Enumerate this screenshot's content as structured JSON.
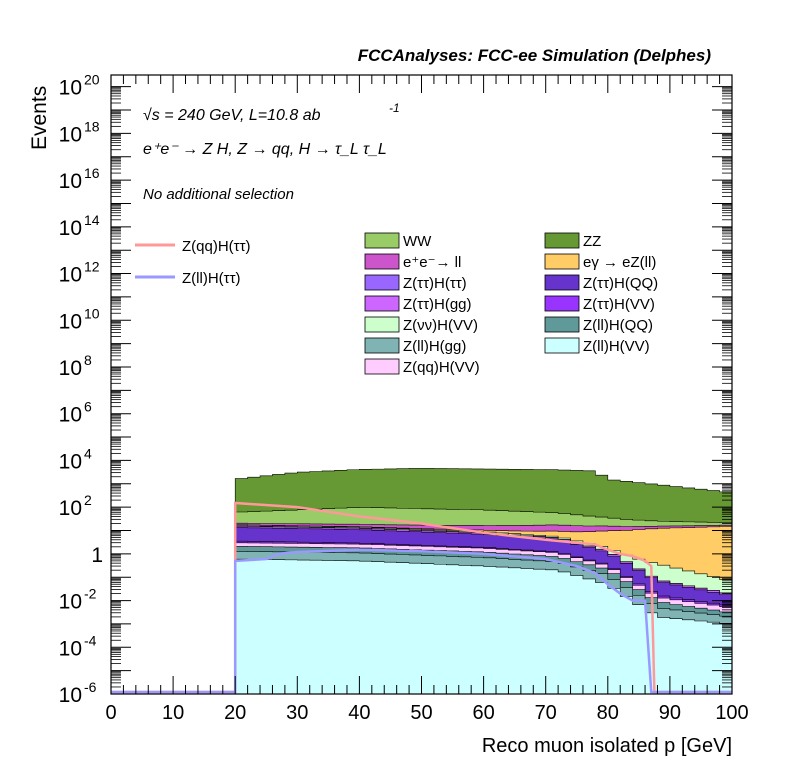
{
  "chart_data": {
    "type": "area",
    "title": "FCCAnalyses: FCC-ee Simulation (Delphes)",
    "xlabel": "Reco muon isolated p [GeV]",
    "ylabel": "Events",
    "xlim": [
      0,
      100
    ],
    "ylim_exponent": [
      -6,
      20.5
    ],
    "log_y": true,
    "x_ticks": [
      "0",
      "10",
      "20",
      "30",
      "40",
      "50",
      "60",
      "70",
      "80",
      "90",
      "100"
    ],
    "y_ticks": [
      {
        "exp": -6,
        "label": "10",
        "sup": "-6"
      },
      {
        "exp": -4,
        "label": "10",
        "sup": "-4"
      },
      {
        "exp": -2,
        "label": "10",
        "sup": "-2"
      },
      {
        "exp": 0,
        "label": "1",
        "sup": ""
      },
      {
        "exp": 2,
        "label": "10",
        "sup": "2"
      },
      {
        "exp": 4,
        "label": "10",
        "sup": "4"
      },
      {
        "exp": 6,
        "label": "10",
        "sup": "6"
      },
      {
        "exp": 8,
        "label": "10",
        "sup": "8"
      },
      {
        "exp": 10,
        "label": "10",
        "sup": "10"
      },
      {
        "exp": 12,
        "label": "10",
        "sup": "12"
      },
      {
        "exp": 14,
        "label": "10",
        "sup": "14"
      },
      {
        "exp": 16,
        "label": "10",
        "sup": "16"
      },
      {
        "exp": 18,
        "label": "10",
        "sup": "18"
      },
      {
        "exp": 20,
        "label": "10",
        "sup": "20"
      }
    ],
    "annotations": {
      "energy": "√s = 240 GeV, L=10.8 ab",
      "energy_sup": "-1",
      "process": "e⁺e⁻ → Z H, Z → qq, H → τ_L τ_L",
      "selection": "No additional selection"
    },
    "stack_layers": [
      {
        "name": "Z(ll)H(VV)",
        "color": "#ccffff",
        "points": [
          [
            20,
            0.6
          ],
          [
            40,
            0.5
          ],
          [
            60,
            0.3
          ],
          [
            72,
            0.2
          ],
          [
            80,
            0.05
          ],
          [
            88,
            0.002
          ],
          [
            100,
            0.001
          ]
        ]
      },
      {
        "name": "Z(ll)H(gg)",
        "color": "#80b3b3",
        "points": [
          [
            20,
            0.7
          ],
          [
            40,
            0.6
          ],
          [
            60,
            0.4
          ],
          [
            72,
            0.25
          ],
          [
            80,
            0.07
          ],
          [
            88,
            0.003
          ],
          [
            100,
            0.001
          ]
        ]
      },
      {
        "name": "Z(ll)H(QQ)",
        "color": "#5f9999",
        "points": [
          [
            20,
            0.8
          ],
          [
            40,
            0.7
          ],
          [
            60,
            0.5
          ],
          [
            72,
            0.3
          ],
          [
            80,
            0.09
          ],
          [
            88,
            0.004
          ],
          [
            100,
            0.001
          ]
        ]
      },
      {
        "name": "Z(qq)H(VV)",
        "color": "#ffccff",
        "points": [
          [
            20,
            0.9
          ],
          [
            40,
            0.8
          ],
          [
            60,
            0.55
          ],
          [
            72,
            0.35
          ],
          [
            80,
            0.1
          ],
          [
            88,
            0.005
          ],
          [
            100,
            0.002
          ]
        ]
      },
      {
        "name": "Z(ττ)H(VV)",
        "color": "#9933ff",
        "points": [
          [
            20,
            0.5
          ],
          [
            30,
            0.4
          ],
          [
            40,
            0.3
          ],
          [
            50,
            0.2
          ],
          [
            60,
            0.15
          ],
          [
            70,
            0.1
          ],
          [
            72,
            0.08
          ],
          [
            80,
            0.03
          ],
          [
            88,
            0.003
          ],
          [
            100,
            0.001
          ]
        ]
      },
      {
        "name": "Z(ττ)H(QQ)",
        "color": "#6633cc",
        "points": [
          [
            20,
            10
          ],
          [
            40,
            8
          ],
          [
            60,
            5
          ],
          [
            72,
            3
          ],
          [
            80,
            0.8
          ],
          [
            88,
            0.05
          ],
          [
            100,
            0.01
          ]
        ]
      },
      {
        "name": "Z(ττ)H(gg)",
        "color": "#cc66ff",
        "points": [
          [
            20,
            2
          ],
          [
            40,
            1.6
          ],
          [
            60,
            1
          ],
          [
            72,
            0.6
          ],
          [
            80,
            0.2
          ],
          [
            88,
            0.01
          ],
          [
            100,
            0.003
          ]
        ]
      },
      {
        "name": "Z(ττ)H(ττ)",
        "color": "#9966ff",
        "points": [
          [
            20,
            0.4
          ],
          [
            30,
            0.3
          ],
          [
            40,
            0.25
          ],
          [
            50,
            0.2
          ],
          [
            60,
            0.12
          ],
          [
            70,
            0.04
          ],
          [
            72,
            0.03
          ],
          [
            80,
            0.005
          ],
          [
            88,
            0.0005
          ],
          [
            100,
            0.0001
          ]
        ]
      },
      {
        "name": "Z(νν)H(VV)",
        "color": "#ccffcc",
        "points": [
          [
            20,
            1.5
          ],
          [
            40,
            1.2
          ],
          [
            60,
            0.9
          ],
          [
            72,
            0.7
          ],
          [
            80,
            0.5
          ],
          [
            88,
            0.3
          ],
          [
            100,
            0.05
          ]
        ]
      },
      {
        "name": "eγ → eZ(ll)",
        "color": "#ffcc66",
        "points": [
          [
            20,
            0.2
          ],
          [
            40,
            0.5
          ],
          [
            60,
            1.5
          ],
          [
            72,
            4
          ],
          [
            80,
            8
          ],
          [
            88,
            12
          ],
          [
            100,
            15
          ]
        ]
      },
      {
        "name": "e⁺e⁻→ ll",
        "color": "#cc55cc",
        "points": [
          [
            20,
            3
          ],
          [
            40,
            4
          ],
          [
            60,
            6
          ],
          [
            72,
            8
          ],
          [
            80,
            6
          ],
          [
            88,
            3
          ],
          [
            100,
            2
          ]
        ]
      },
      {
        "name": "WW",
        "color": "#99cc66",
        "points": [
          [
            20,
            40
          ],
          [
            40,
            80
          ],
          [
            60,
            60
          ],
          [
            72,
            40
          ],
          [
            80,
            20
          ],
          [
            88,
            10
          ],
          [
            100,
            5
          ]
        ]
      },
      {
        "name": "ZZ",
        "color": "#669933",
        "points": [
          [
            20,
            1500
          ],
          [
            30,
            3000
          ],
          [
            40,
            4000
          ],
          [
            50,
            4500
          ],
          [
            60,
            4200
          ],
          [
            70,
            4000
          ],
          [
            78,
            3500
          ],
          [
            80,
            1500
          ],
          [
            88,
            900
          ],
          [
            100,
            400
          ]
        ]
      }
    ],
    "legend": [
      {
        "name": "WW",
        "color": "#99cc66"
      },
      {
        "name": "ZZ",
        "color": "#669933"
      },
      {
        "name": "e⁺e⁻→ ll",
        "color": "#cc55cc"
      },
      {
        "name": "eγ → eZ(ll)",
        "color": "#ffcc66"
      },
      {
        "name": "Z(ττ)H(ττ)",
        "color": "#9966ff"
      },
      {
        "name": "Z(ττ)H(QQ)",
        "color": "#6633cc"
      },
      {
        "name": "Z(ττ)H(gg)",
        "color": "#cc66ff"
      },
      {
        "name": "Z(ττ)H(VV)",
        "color": "#9933ff"
      },
      {
        "name": "Z(νν)H(VV)",
        "color": "#ccffcc"
      },
      {
        "name": "Z(ll)H(QQ)",
        "color": "#5f9999"
      },
      {
        "name": "Z(ll)H(gg)",
        "color": "#80b3b3"
      },
      {
        "name": "Z(ll)H(VV)",
        "color": "#ccffff"
      },
      {
        "name": "Z(qq)H(VV)",
        "color": "#ffccff"
      }
    ],
    "signal_lines": [
      {
        "name": "Z(qq)H(ττ)",
        "color": "#ff9999",
        "points": [
          [
            0,
            1e-06
          ],
          [
            20,
            1e-06
          ],
          [
            20,
            150
          ],
          [
            30,
            100
          ],
          [
            40,
            40
          ],
          [
            50,
            20
          ],
          [
            60,
            8
          ],
          [
            70,
            4
          ],
          [
            75,
            3
          ],
          [
            78,
            2.5
          ],
          [
            80,
            1.5
          ],
          [
            82,
            1
          ],
          [
            84,
            0.8
          ],
          [
            86,
            0.5
          ],
          [
            87,
            0.3
          ],
          [
            87.5,
            1e-06
          ],
          [
            100,
            1e-06
          ]
        ]
      },
      {
        "name": "Z(ll)H(ττ)",
        "color": "#9999ff",
        "points": [
          [
            0,
            1e-06
          ],
          [
            20,
            1e-06
          ],
          [
            20,
            0.5
          ],
          [
            25,
            0.6
          ],
          [
            27,
            1
          ],
          [
            30,
            1.2
          ],
          [
            40,
            1.5
          ],
          [
            50,
            1.3
          ],
          [
            60,
            1
          ],
          [
            70,
            0.6
          ],
          [
            75,
            0.3
          ],
          [
            78,
            0.15
          ],
          [
            80,
            0.05
          ],
          [
            82,
            0.02
          ],
          [
            84,
            0.01
          ],
          [
            86,
            0.01
          ],
          [
            87,
            1e-06
          ],
          [
            100,
            1e-06
          ]
        ]
      }
    ]
  }
}
